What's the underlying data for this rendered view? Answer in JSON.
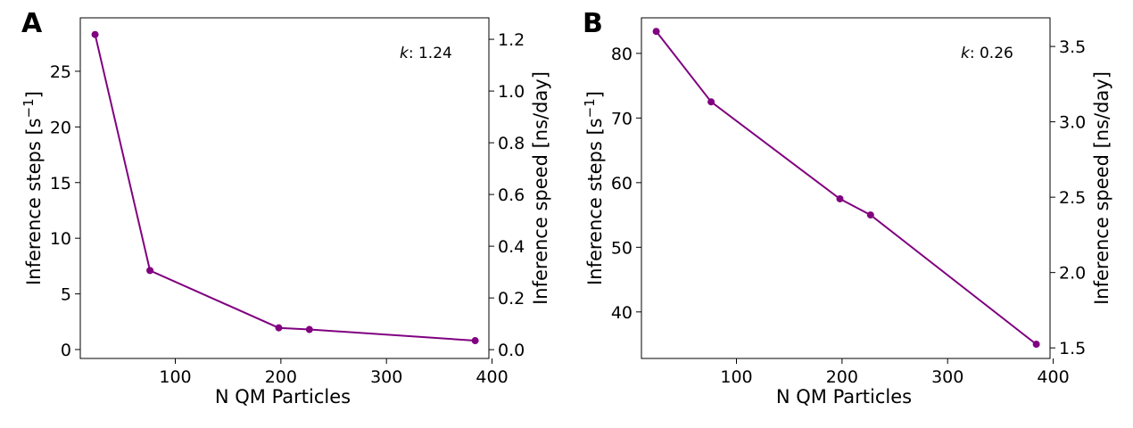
{
  "chart_data": [
    {
      "type": "line",
      "panel_label": "A",
      "xlabel": "N QM Particles",
      "ylabel": "Inference steps [s⁻¹]",
      "y2label": "Inference speed [ns/day]",
      "xlim": [
        10,
        397
      ],
      "ylim": [
        -0.8,
        29.8
      ],
      "y2lim": [
        -0.034,
        1.283
      ],
      "xticks": [
        100,
        200,
        300,
        400
      ],
      "yticks": [
        0,
        5,
        10,
        15,
        20,
        25
      ],
      "y2ticks": [
        0.0,
        0.2,
        0.4,
        0.6,
        0.8,
        1.0,
        1.2
      ],
      "y2tick_labels": [
        "0.0",
        "0.2",
        "0.4",
        "0.6",
        "0.8",
        "1.0",
        "1.2"
      ],
      "series": [
        {
          "name": "Inference steps",
          "color": "#800080",
          "x": [
            24,
            76,
            198,
            227,
            384
          ],
          "y": [
            28.3,
            7.1,
            1.95,
            1.8,
            0.8
          ]
        }
      ],
      "annotation": {
        "symbol": "k",
        "text": ": 1.24"
      }
    },
    {
      "type": "line",
      "panel_label": "B",
      "xlabel": "N QM Particles",
      "ylabel": "Inference steps [s⁻¹]",
      "y2label": "Inference speed [ns/day]",
      "xlim": [
        10,
        397
      ],
      "ylim": [
        32.8,
        85.5
      ],
      "y2lim": [
        1.43,
        3.69
      ],
      "xticks": [
        100,
        200,
        300,
        400
      ],
      "yticks": [
        40,
        50,
        60,
        70,
        80
      ],
      "y2ticks": [
        1.5,
        2.0,
        2.5,
        3.0,
        3.5
      ],
      "y2tick_labels": [
        "1.5",
        "2.0",
        "2.5",
        "3.0",
        "3.5"
      ],
      "series": [
        {
          "name": "Inference steps",
          "color": "#800080",
          "x": [
            24,
            76,
            198,
            227,
            384
          ],
          "y": [
            83.4,
            72.5,
            57.5,
            55.0,
            35.0
          ]
        }
      ],
      "annotation": {
        "symbol": "k",
        "text": ": 0.26"
      }
    }
  ]
}
